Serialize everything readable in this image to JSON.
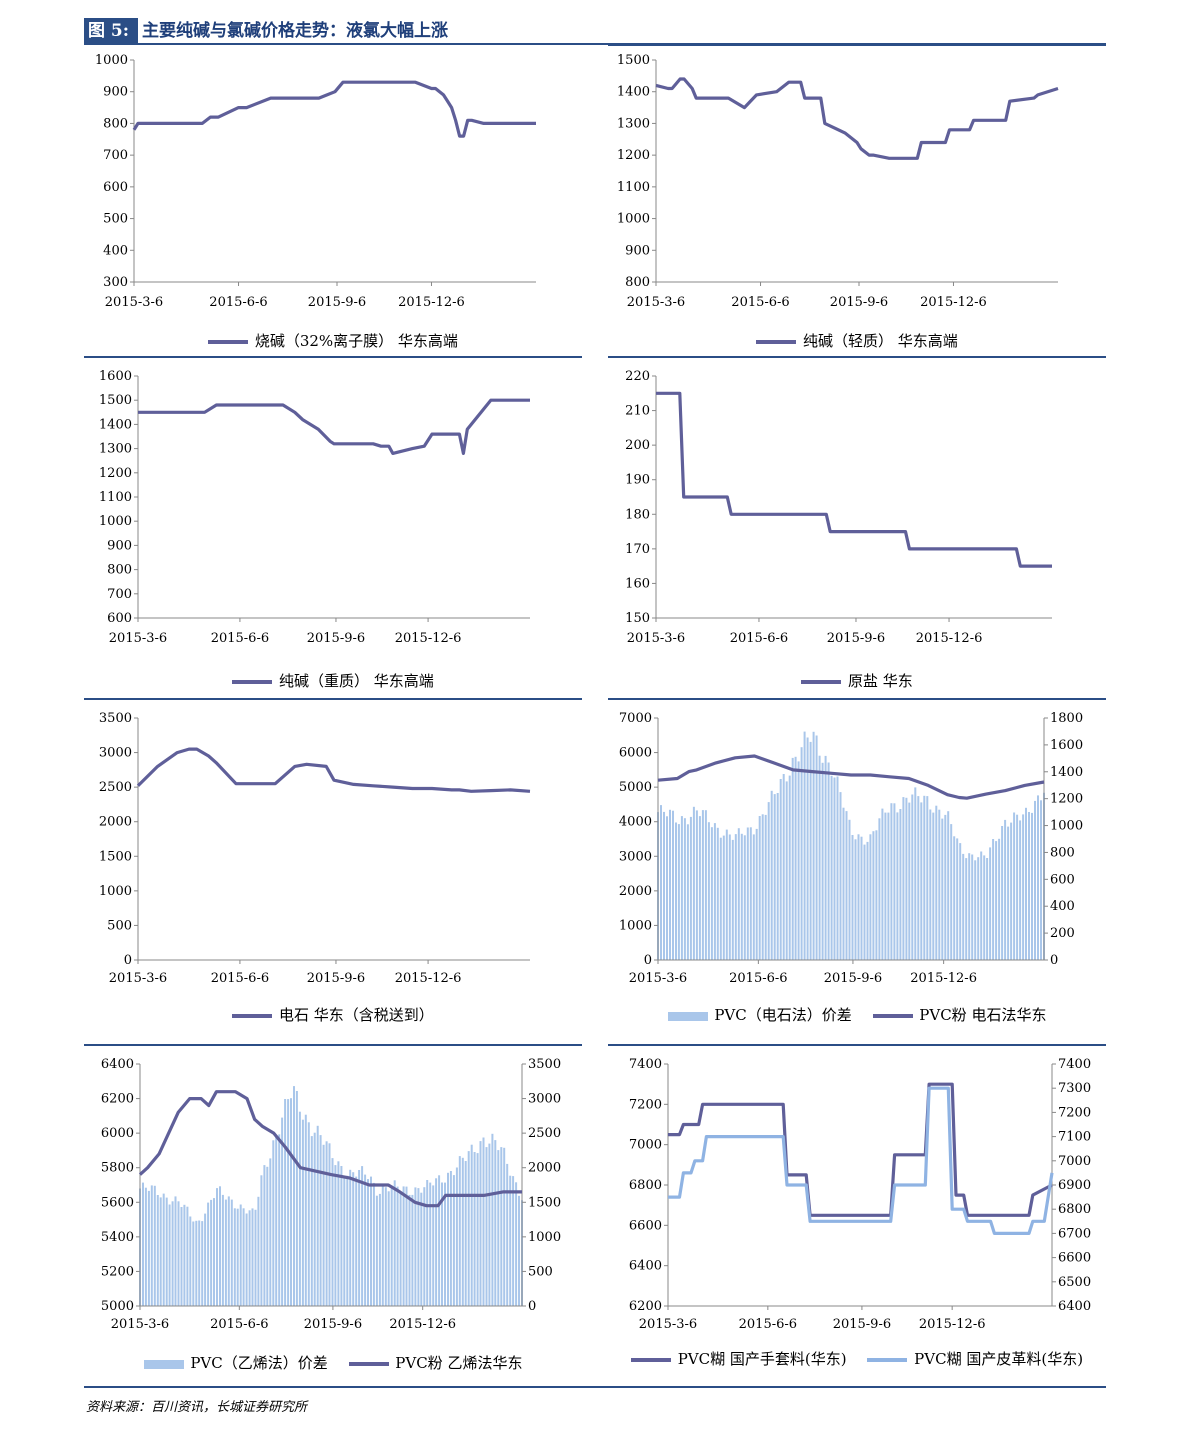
{
  "figure": {
    "number": "图 5:",
    "title": "主要纯碱与氯碱价格走势：液氯大幅上涨"
  },
  "source": "资料来源：百川资讯，长城证券研究所",
  "colors": {
    "line": "#5f5f99",
    "bar": "#a9c6ea",
    "bar2": "#8fb3e3",
    "rule": "#2b4e86"
  },
  "x_labels": [
    "2015-3-6",
    "2015-6-6",
    "2015-9-6",
    "2015-12-6"
  ],
  "chart_data": [
    {
      "id": "c1",
      "type": "line",
      "ylim": [
        300,
        1000
      ],
      "yticks": [
        "1000",
        "900",
        "800",
        "700",
        "600",
        "500",
        "400",
        "300"
      ],
      "series": [
        {
          "name": "烧碱（32%离子膜） 华东高端",
          "kind": "line",
          "axis": "left",
          "x": [
            0,
            0.01,
            0.04,
            0.1,
            0.17,
            0.19,
            0.21,
            0.26,
            0.28,
            0.34,
            0.38,
            0.44,
            0.46,
            0.48,
            0.5,
            0.52,
            0.56,
            0.62,
            0.7,
            0.74,
            0.75,
            0.77,
            0.78,
            0.79,
            0.8,
            0.81,
            0.82,
            0.83,
            0.84,
            0.87,
            0.88,
            0.9,
            0.95,
            1.0
          ],
          "y": [
            780,
            800,
            800,
            800,
            800,
            820,
            820,
            850,
            850,
            880,
            880,
            880,
            880,
            890,
            900,
            930,
            930,
            930,
            930,
            910,
            910,
            890,
            870,
            850,
            810,
            760,
            760,
            810,
            810,
            800,
            800,
            800,
            800,
            800
          ]
        }
      ]
    },
    {
      "id": "c2",
      "type": "line",
      "ylim": [
        800,
        1500
      ],
      "yticks": [
        "1500",
        "1400",
        "1300",
        "1200",
        "1100",
        "1000",
        "900",
        "800"
      ],
      "series": [
        {
          "name": "纯碱（轻质） 华东高端",
          "kind": "line",
          "axis": "left",
          "x": [
            0,
            0.03,
            0.04,
            0.06,
            0.07,
            0.09,
            0.1,
            0.18,
            0.22,
            0.25,
            0.3,
            0.33,
            0.36,
            0.37,
            0.41,
            0.42,
            0.47,
            0.48,
            0.5,
            0.51,
            0.53,
            0.54,
            0.58,
            0.6,
            0.65,
            0.66,
            0.68,
            0.72,
            0.73,
            0.78,
            0.79,
            0.87,
            0.88,
            0.94,
            0.95,
            1.0
          ],
          "y": [
            1420,
            1410,
            1410,
            1440,
            1440,
            1410,
            1380,
            1380,
            1350,
            1390,
            1400,
            1430,
            1430,
            1380,
            1380,
            1300,
            1270,
            1260,
            1240,
            1220,
            1200,
            1200,
            1190,
            1190,
            1190,
            1240,
            1240,
            1240,
            1280,
            1280,
            1310,
            1310,
            1370,
            1380,
            1390,
            1410
          ]
        }
      ]
    },
    {
      "id": "c3",
      "type": "line",
      "ylim": [
        600,
        1600
      ],
      "yticks": [
        "1600",
        "1500",
        "1400",
        "1300",
        "1200",
        "1100",
        "1000",
        "900",
        "800",
        "700",
        "600"
      ],
      "series": [
        {
          "name": "纯碱（重质） 华东高端",
          "kind": "line",
          "axis": "left",
          "x": [
            0,
            0.17,
            0.2,
            0.37,
            0.4,
            0.42,
            0.46,
            0.49,
            0.5,
            0.6,
            0.62,
            0.64,
            0.65,
            0.7,
            0.73,
            0.75,
            0.82,
            0.83,
            0.84,
            0.9,
            1.0
          ],
          "y": [
            1450,
            1450,
            1480,
            1480,
            1450,
            1420,
            1380,
            1330,
            1320,
            1320,
            1310,
            1310,
            1280,
            1300,
            1310,
            1360,
            1360,
            1280,
            1380,
            1500,
            1500
          ]
        }
      ]
    },
    {
      "id": "c4",
      "type": "line",
      "ylim": [
        150,
        220
      ],
      "yticks": [
        "220",
        "210",
        "200",
        "190",
        "180",
        "170",
        "160",
        "150"
      ],
      "series": [
        {
          "name": "原盐 华东",
          "kind": "line",
          "axis": "left",
          "x": [
            0,
            0.06,
            0.07,
            0.18,
            0.19,
            0.43,
            0.44,
            0.63,
            0.64,
            0.91,
            0.92,
            1.0
          ],
          "y": [
            215,
            215,
            185,
            185,
            180,
            180,
            175,
            175,
            170,
            170,
            165,
            165
          ]
        }
      ]
    },
    {
      "id": "c5",
      "type": "line",
      "ylim": [
        0,
        3500
      ],
      "yticks": [
        "3500",
        "3000",
        "2500",
        "2000",
        "1500",
        "1000",
        "500",
        "0"
      ],
      "series": [
        {
          "name": "电石 华东（含税送到）",
          "kind": "line",
          "axis": "left",
          "x": [
            0,
            0.05,
            0.1,
            0.13,
            0.15,
            0.18,
            0.2,
            0.25,
            0.27,
            0.3,
            0.35,
            0.4,
            0.43,
            0.48,
            0.5,
            0.55,
            0.6,
            0.65,
            0.7,
            0.75,
            0.8,
            0.82,
            0.85,
            0.9,
            0.95,
            1.0
          ],
          "y": [
            2520,
            2800,
            3000,
            3050,
            3050,
            2950,
            2850,
            2550,
            2550,
            2550,
            2550,
            2800,
            2830,
            2800,
            2600,
            2540,
            2520,
            2500,
            2480,
            2480,
            2460,
            2460,
            2440,
            2450,
            2460,
            2440
          ]
        }
      ]
    },
    {
      "id": "c6",
      "type": "combo",
      "ylim": [
        0,
        7000
      ],
      "y2lim": [
        0,
        1800
      ],
      "yticks": [
        "7000",
        "6000",
        "5000",
        "4000",
        "3000",
        "2000",
        "1000",
        "0"
      ],
      "y2ticks": [
        "1800",
        "1600",
        "1400",
        "1200",
        "1000",
        "800",
        "600",
        "400",
        "200",
        "0"
      ],
      "series": [
        {
          "name": "PVC（电石法）价差",
          "kind": "bar",
          "axis": "right",
          "x": [
            0,
            0.05,
            0.1,
            0.15,
            0.2,
            0.25,
            0.3,
            0.35,
            0.38,
            0.4,
            0.45,
            0.5,
            0.55,
            0.6,
            0.65,
            0.7,
            0.75,
            0.78,
            0.8,
            0.85,
            0.9,
            0.95,
            1.0
          ],
          "y": [
            1100,
            1050,
            1100,
            1000,
            900,
            1000,
            1200,
            1500,
            1600,
            1650,
            1450,
            950,
            900,
            1150,
            1200,
            1200,
            1050,
            850,
            800,
            750,
            1050,
            1050,
            1300
          ]
        },
        {
          "name": "PVC粉 电石法华东",
          "kind": "line",
          "axis": "left",
          "x": [
            0,
            0.05,
            0.08,
            0.1,
            0.15,
            0.2,
            0.25,
            0.3,
            0.35,
            0.4,
            0.45,
            0.5,
            0.55,
            0.6,
            0.65,
            0.7,
            0.75,
            0.78,
            0.8,
            0.85,
            0.9,
            0.95,
            1.0
          ],
          "y": [
            5200,
            5250,
            5450,
            5500,
            5700,
            5850,
            5900,
            5700,
            5500,
            5450,
            5400,
            5350,
            5350,
            5300,
            5250,
            5050,
            4780,
            4700,
            4680,
            4800,
            4900,
            5050,
            5150
          ]
        }
      ]
    },
    {
      "id": "c7",
      "type": "combo",
      "ylim": [
        5000,
        6400
      ],
      "y2lim": [
        0,
        3500
      ],
      "yticks": [
        "6400",
        "6200",
        "6000",
        "5800",
        "5600",
        "5400",
        "5200",
        "5000"
      ],
      "y2ticks": [
        "3500",
        "3000",
        "2500",
        "2000",
        "1500",
        "1000",
        "500",
        "0"
      ],
      "series": [
        {
          "name": "PVC（乙烯法）价差",
          "kind": "bar",
          "axis": "right",
          "x": [
            0,
            0.05,
            0.1,
            0.15,
            0.2,
            0.25,
            0.3,
            0.32,
            0.35,
            0.4,
            0.45,
            0.5,
            0.55,
            0.6,
            0.62,
            0.7,
            0.75,
            0.8,
            0.85,
            0.9,
            0.92,
            0.95,
            1.0
          ],
          "y": [
            1700,
            1650,
            1500,
            1200,
            1650,
            1500,
            1300,
            1900,
            2400,
            3100,
            2600,
            2200,
            1900,
            1900,
            1700,
            1700,
            1700,
            1900,
            2100,
            2450,
            2400,
            2200,
            1600
          ]
        },
        {
          "name": "PVC粉 乙烯法华东",
          "kind": "line",
          "axis": "right",
          "x": [
            0,
            0.02,
            0.05,
            0.1,
            0.13,
            0.16,
            0.18,
            0.2,
            0.25,
            0.28,
            0.3,
            0.32,
            0.35,
            0.38,
            0.42,
            0.5,
            0.55,
            0.6,
            0.65,
            0.68,
            0.72,
            0.75,
            0.78,
            0.8,
            0.85,
            0.9,
            0.95,
            1.0
          ],
          "y": [
            1900,
            2000,
            2200,
            2800,
            3000,
            3000,
            2900,
            3100,
            3100,
            3000,
            2700,
            2600,
            2500,
            2300,
            2000,
            1900,
            1850,
            1750,
            1750,
            1650,
            1500,
            1450,
            1450,
            1600,
            1600,
            1600,
            1650,
            1650
          ]
        }
      ]
    },
    {
      "id": "c8",
      "type": "line",
      "ylim": [
        6200,
        7400
      ],
      "y2lim": [
        6400,
        7400
      ],
      "yticks": [
        "7400",
        "7200",
        "7000",
        "6800",
        "6600",
        "6400",
        "6200"
      ],
      "y2ticks": [
        "7400",
        "7300",
        "7200",
        "7100",
        "7000",
        "6900",
        "6800",
        "6700",
        "6600",
        "6500",
        "6400"
      ],
      "series": [
        {
          "name": "PVC糊 国产手套料(华东)",
          "kind": "line",
          "axis": "left",
          "x": [
            0,
            0.03,
            0.04,
            0.08,
            0.09,
            0.3,
            0.31,
            0.36,
            0.37,
            0.58,
            0.59,
            0.67,
            0.68,
            0.74,
            0.75,
            0.77,
            0.78,
            0.94,
            0.95,
            1.0
          ],
          "y": [
            7050,
            7050,
            7100,
            7100,
            7200,
            7200,
            6850,
            6850,
            6650,
            6650,
            6950,
            6950,
            7300,
            7300,
            6750,
            6750,
            6650,
            6650,
            6750,
            6800
          ]
        },
        {
          "name": "PVC糊 国产皮革料(华东)",
          "kind": "line",
          "axis": "right",
          "x": [
            0,
            0.03,
            0.04,
            0.06,
            0.07,
            0.09,
            0.1,
            0.3,
            0.31,
            0.36,
            0.37,
            0.58,
            0.59,
            0.67,
            0.68,
            0.73,
            0.74,
            0.77,
            0.78,
            0.84,
            0.85,
            0.94,
            0.95,
            0.98,
            1.0
          ],
          "y": [
            6850,
            6850,
            6950,
            6950,
            7000,
            7000,
            7100,
            7100,
            6900,
            6900,
            6750,
            6750,
            6900,
            6900,
            7300,
            7300,
            6800,
            6800,
            6750,
            6750,
            6700,
            6700,
            6750,
            6750,
            6950
          ]
        }
      ]
    }
  ]
}
